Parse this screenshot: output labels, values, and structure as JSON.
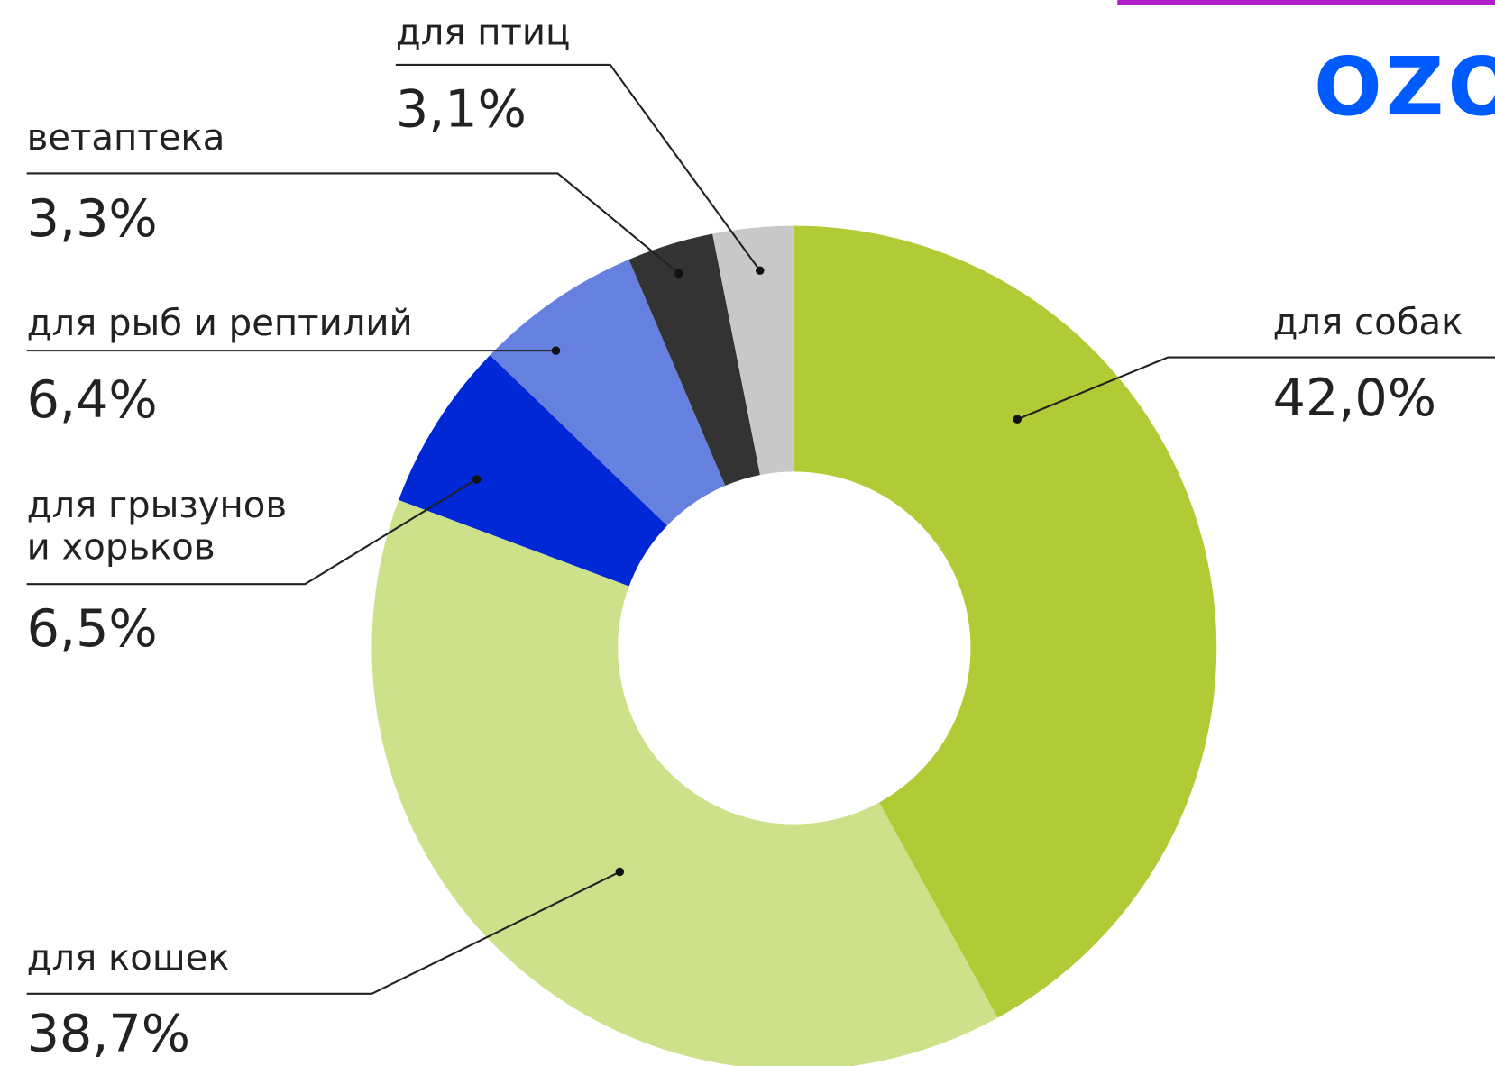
{
  "logo": "OZON",
  "chart_data": {
    "type": "donut",
    "categories": [
      "для собак",
      "для кошек",
      "для грызунов\nи хорьков",
      "для рыб и рептилий",
      "ветаптека",
      "для птиц"
    ],
    "values": [
      42.0,
      38.7,
      6.5,
      6.4,
      3.3,
      3.1
    ],
    "value_labels": [
      "42,0%",
      "38,7%",
      "6,5%",
      "6,4%",
      "3,3%",
      "3,1%"
    ],
    "colors": [
      "#b0cb35",
      "#cde08a",
      "#0028d6",
      "#6680e0",
      "#333333",
      "#c8c8c8"
    ]
  }
}
